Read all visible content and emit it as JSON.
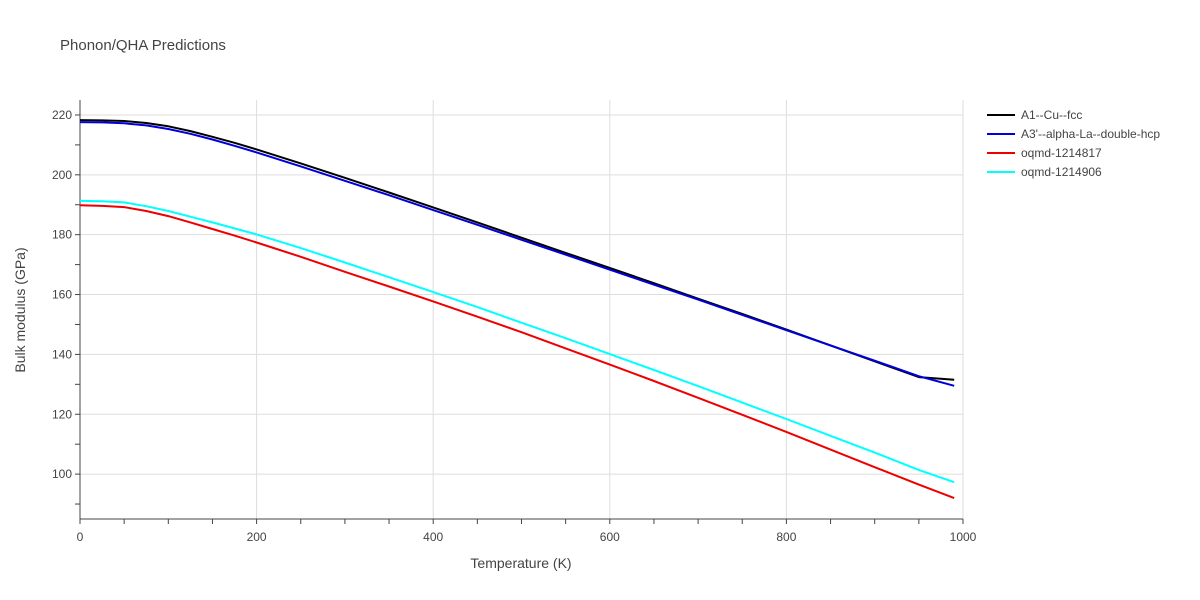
{
  "chart_data": {
    "type": "line",
    "title": "Phonon/QHA Predictions",
    "xlabel": "Temperature (K)",
    "ylabel": "Bulk modulus (GPa)",
    "xlim": [
      0,
      1000
    ],
    "ylim": [
      85,
      225
    ],
    "xticks": [
      0,
      200,
      400,
      600,
      800,
      1000
    ],
    "yticks": [
      100,
      120,
      140,
      160,
      180,
      200,
      220
    ],
    "grid": true,
    "legend_position": "top-right",
    "x": [
      0,
      25,
      50,
      75,
      100,
      125,
      150,
      175,
      200,
      250,
      300,
      350,
      400,
      450,
      500,
      550,
      600,
      650,
      700,
      750,
      800,
      850,
      900,
      950,
      990
    ],
    "series": [
      {
        "name": "A1--Cu--fcc",
        "color": "#000000",
        "values": [
          218.3,
          218.2,
          218.0,
          217.3,
          216.2,
          214.6,
          212.7,
          210.7,
          208.5,
          203.8,
          199.0,
          194.1,
          189.1,
          184.1,
          179.0,
          173.9,
          168.9,
          163.8,
          158.6,
          153.5,
          148.3,
          143.0,
          137.7,
          132.4,
          131.5
        ]
      },
      {
        "name": "A3'--alpha-La--double-hcp",
        "color": "#0000dd",
        "values": [
          217.6,
          217.5,
          217.2,
          216.5,
          215.3,
          213.7,
          211.8,
          209.7,
          207.5,
          202.8,
          198.0,
          193.2,
          188.2,
          183.3,
          178.3,
          173.3,
          168.3,
          163.3,
          158.3,
          153.2,
          148.1,
          143.0,
          137.9,
          132.7,
          129.5
        ]
      },
      {
        "name": "oqmd-1214817",
        "color": "#ee0000",
        "values": [
          189.8,
          189.6,
          189.2,
          187.9,
          186.2,
          184.1,
          181.9,
          179.7,
          177.4,
          172.6,
          167.6,
          162.7,
          157.7,
          152.6,
          147.4,
          142.0,
          136.6,
          131.1,
          125.5,
          119.8,
          114.1,
          108.2,
          102.3,
          96.5,
          92.0
        ]
      },
      {
        "name": "oqmd-1214906",
        "color": "#00ffff",
        "values": [
          191.3,
          191.2,
          190.8,
          189.5,
          187.9,
          186.0,
          184.1,
          182.1,
          180.1,
          175.5,
          170.7,
          165.8,
          160.8,
          155.8,
          150.6,
          145.4,
          140.1,
          134.8,
          129.4,
          123.9,
          118.4,
          112.8,
          107.2,
          101.4,
          97.3
        ]
      }
    ]
  }
}
